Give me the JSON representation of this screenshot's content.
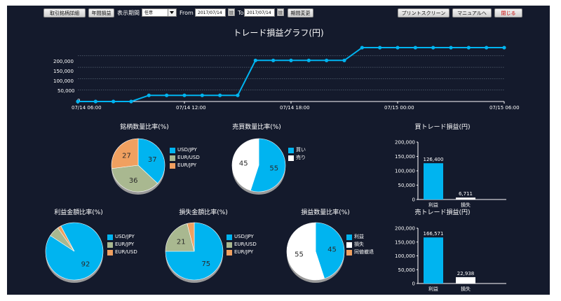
{
  "toolbar": {
    "detail_button": "取引銘柄詳細",
    "yearly_button": "年間損益",
    "period_label": "表示期間",
    "period_select": "任意",
    "from_label": "From",
    "from_date": "2017/07/14",
    "to_label": "To",
    "to_date": "2017/07/14",
    "change_button": "期間変更",
    "print_button": "プリントスクリーン",
    "manual_button": "マニュアルへ",
    "close_button": "閉じる"
  },
  "colors": {
    "background": "#141a2c",
    "blue": "#00b4f0",
    "green": "#a9b890",
    "orange": "#f0a060",
    "white": "#ffffff",
    "close_text": "#cc0000"
  },
  "line_chart": {
    "title": "トレード損益グラフ(円)",
    "y_ticks": [
      "200,000",
      "150,000",
      "100,000",
      "50,000",
      "0"
    ],
    "x_ticks": [
      "07/14 06:00",
      "07/14 12:00",
      "07/14 18:00",
      "07/15 00:00",
      "07/15 06:00"
    ]
  },
  "chart_data": [
    {
      "type": "line",
      "title": "トレード損益グラフ(円)",
      "x_range": [
        "07/14 06:00",
        "07/15 06:00"
      ],
      "ylim": [
        0,
        230000
      ],
      "y_ticks": [
        0,
        50000,
        100000,
        150000,
        200000
      ],
      "x_hours": [
        0,
        1,
        2,
        3,
        4,
        5,
        6,
        7,
        8,
        9,
        10,
        11,
        12,
        13,
        14,
        15,
        16,
        17,
        18,
        19,
        20,
        21,
        22,
        23,
        24
      ],
      "values": [
        0,
        0,
        0,
        0,
        27000,
        27000,
        27000,
        27000,
        27000,
        27000,
        180000,
        180000,
        180000,
        180000,
        180000,
        180000,
        236000,
        236000,
        236000,
        236000,
        236000,
        236000,
        236000,
        236000,
        236000
      ]
    },
    {
      "type": "pie",
      "title": "銘柄数量比率(%)",
      "labels": [
        "USD/JPY",
        "EUR/USD",
        "EUR/JPY"
      ],
      "values": [
        37,
        36,
        27
      ],
      "colors": [
        "#00b4f0",
        "#a9b890",
        "#f0a060"
      ]
    },
    {
      "type": "pie",
      "title": "売買数量比率(%)",
      "labels": [
        "買い",
        "売り"
      ],
      "values": [
        55,
        45
      ],
      "colors": [
        "#00b4f0",
        "#ffffff"
      ]
    },
    {
      "type": "pie",
      "title": "利益金額比率(%)",
      "labels": [
        "USD/JPY",
        "EUR/JPY",
        "EUR/USD"
      ],
      "values": [
        92,
        6,
        2
      ],
      "slice_labels": [
        "92",
        "",
        ""
      ],
      "colors": [
        "#00b4f0",
        "#a9b890",
        "#f0a060"
      ]
    },
    {
      "type": "pie",
      "title": "損失金額比率(%)",
      "labels": [
        "USD/JPY",
        "EUR/USD",
        "EUR/JPY"
      ],
      "values": [
        75,
        21,
        4
      ],
      "slice_labels": [
        "75",
        "21",
        ""
      ],
      "colors": [
        "#00b4f0",
        "#a9b890",
        "#f0a060"
      ]
    },
    {
      "type": "pie",
      "title": "損益数量比率(%)",
      "labels": [
        "利益",
        "損失",
        "同値撤退"
      ],
      "values": [
        45,
        55,
        0
      ],
      "slice_labels": [
        "45",
        "55",
        ""
      ],
      "colors": [
        "#00b4f0",
        "#ffffff",
        "#f0a060"
      ]
    },
    {
      "type": "bar",
      "title": "買トレード損益(円)",
      "categories": [
        "利益",
        "損失"
      ],
      "values": [
        126400,
        6711
      ],
      "value_labels": [
        "126,400",
        "6,711"
      ],
      "colors": [
        "#00b4f0",
        "#ffffff"
      ],
      "ylim": [
        0,
        200000
      ],
      "y_ticks": [
        "200,000",
        "150,000",
        "100,000",
        "50,000",
        "0"
      ]
    },
    {
      "type": "bar",
      "title": "売トレード損益(円)",
      "categories": [
        "利益",
        "損失"
      ],
      "values": [
        166571,
        22938
      ],
      "value_labels": [
        "166,571",
        "22,938"
      ],
      "colors": [
        "#00b4f0",
        "#ffffff"
      ],
      "ylim": [
        0,
        200000
      ],
      "y_ticks": [
        "200,000",
        "150,000",
        "100,000",
        "50,000",
        "0"
      ]
    }
  ]
}
